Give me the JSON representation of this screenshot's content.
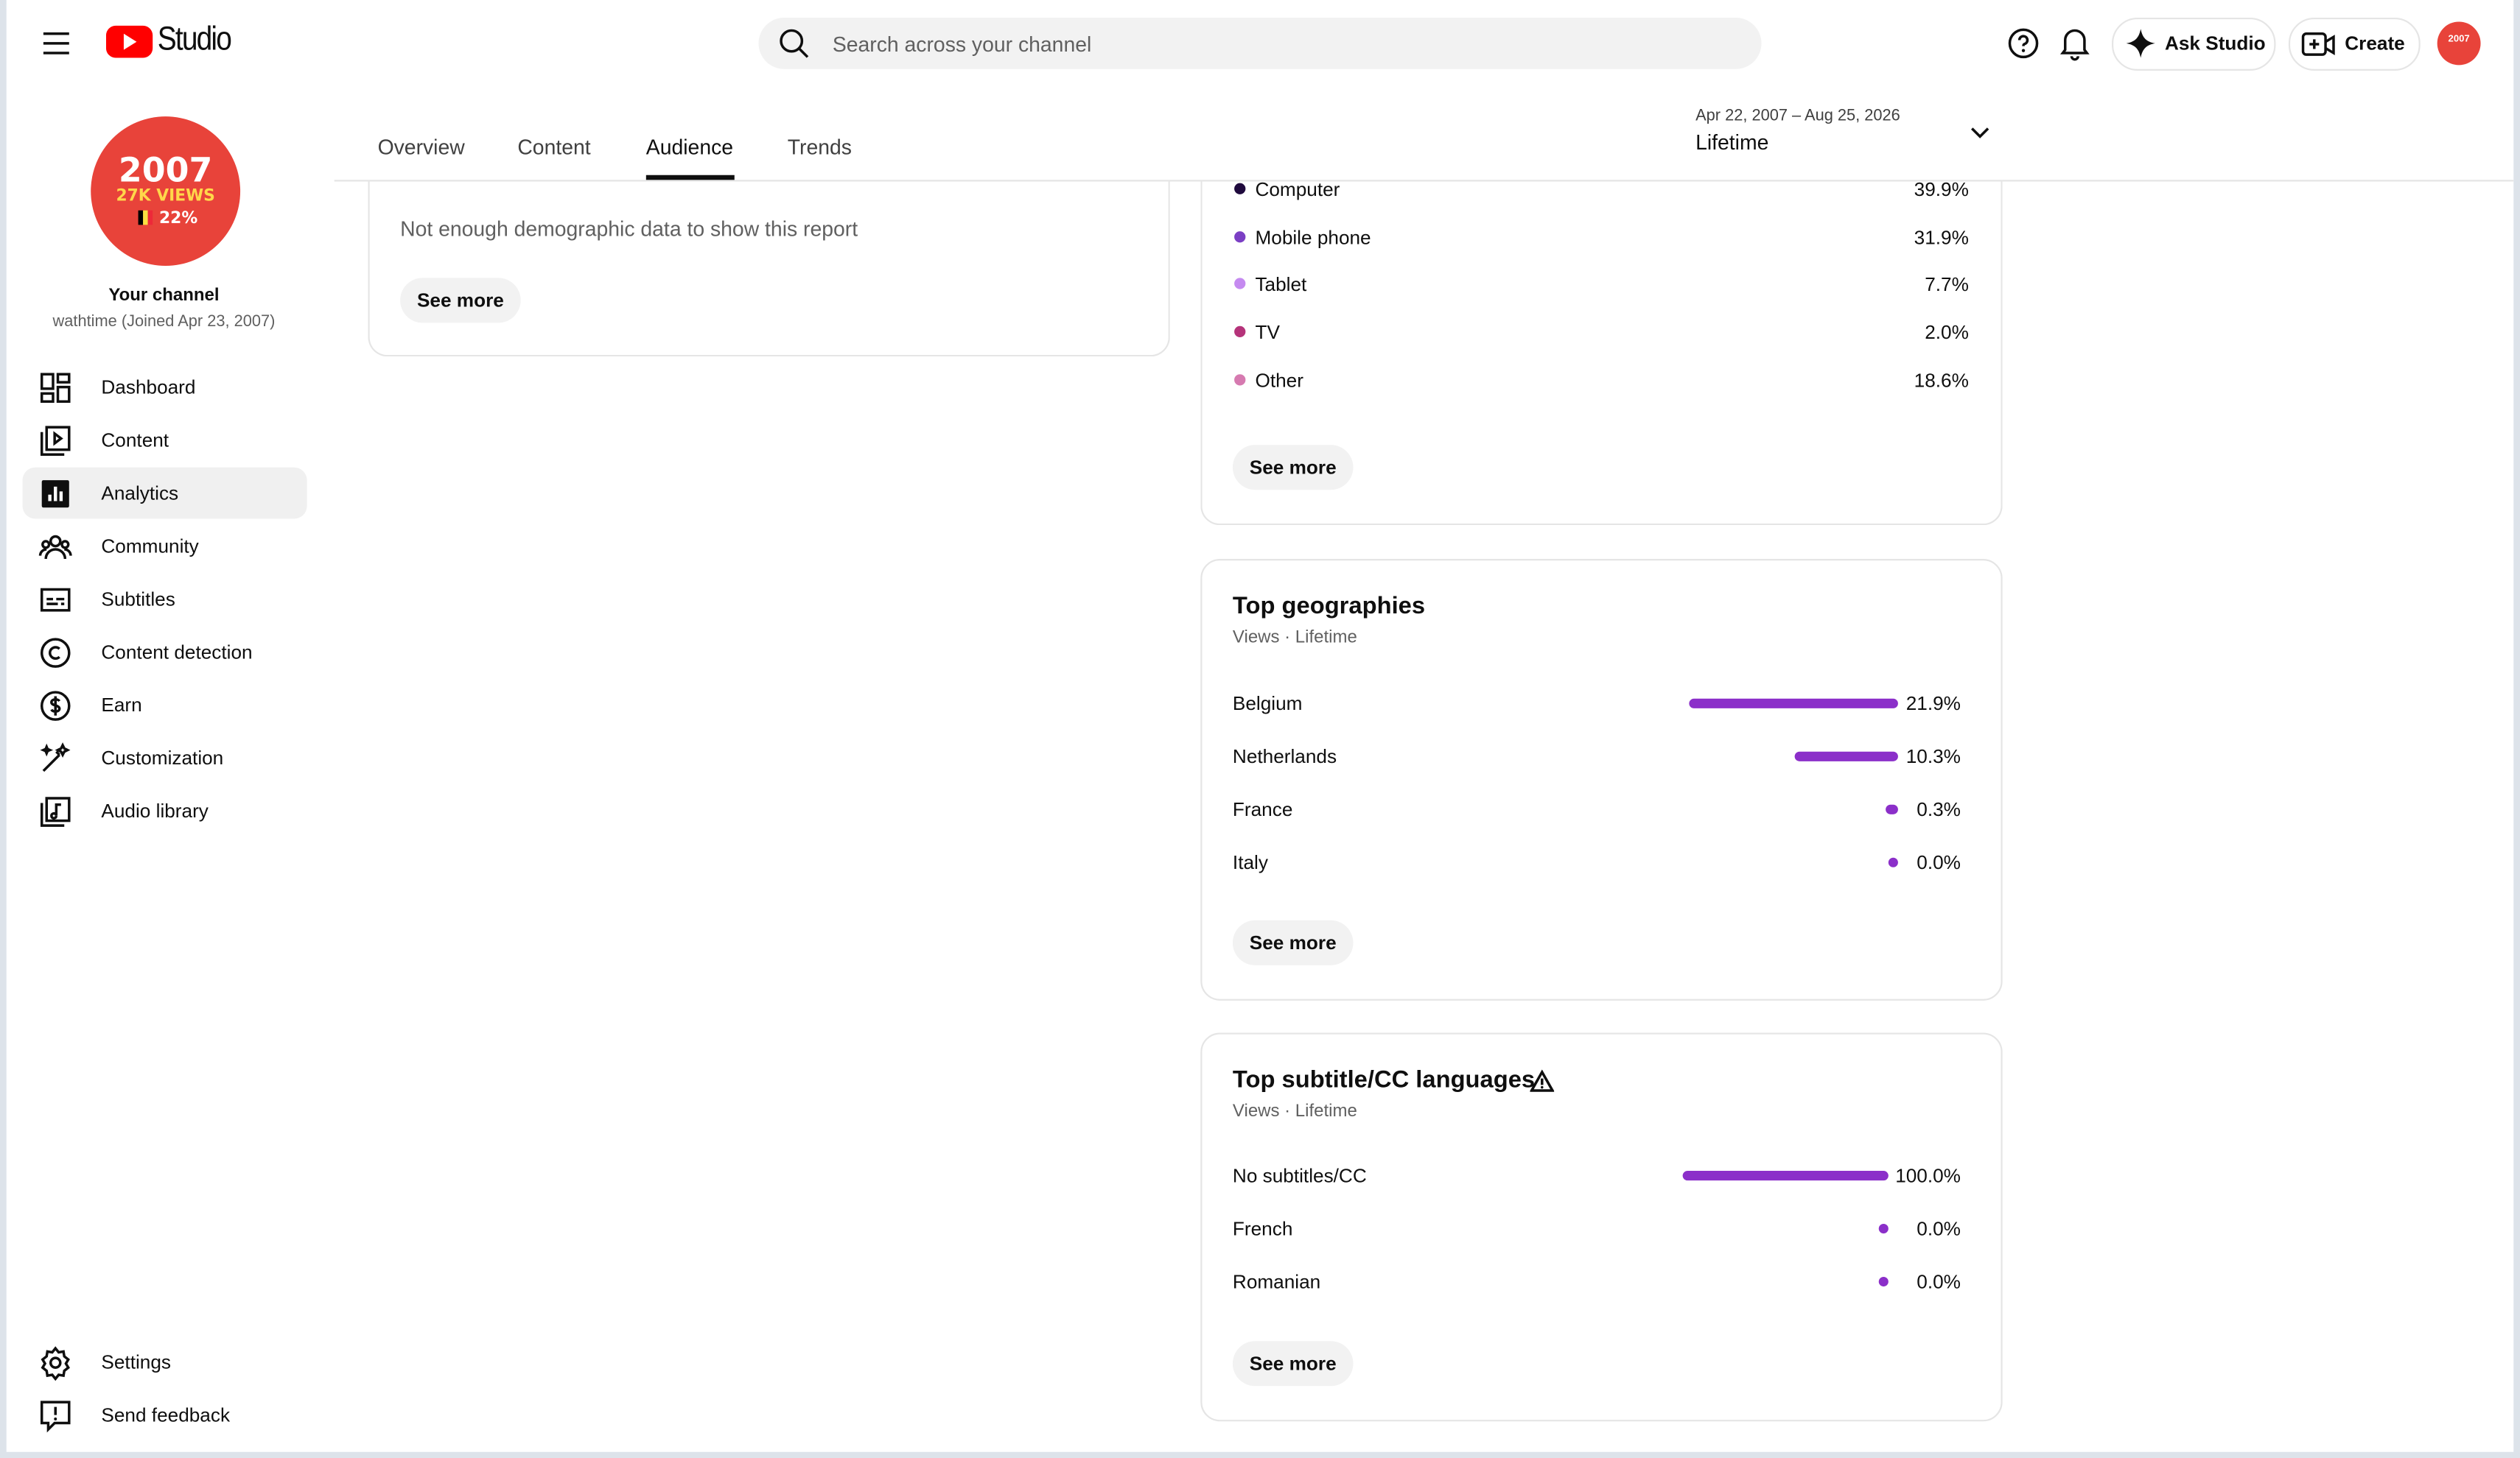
{
  "header": {
    "logo": "Studio",
    "search_placeholder": "Search across your channel",
    "ask_studio": "Ask Studio",
    "create": "Create"
  },
  "channel": {
    "avatar": {
      "year": "2007",
      "views": "27K VIEWS",
      "share": "22%"
    },
    "title": "Your channel",
    "handle": "wathtime (Joined Apr 23, 2007)"
  },
  "nav": [
    "Dashboard",
    "Content",
    "Analytics",
    "Community",
    "Subtitles",
    "Content detection",
    "Earn",
    "Customization",
    "Audio library"
  ],
  "nav_bottom": [
    "Settings",
    "Send feedback"
  ],
  "tabs": [
    "Overview",
    "Content",
    "Audience",
    "Trends"
  ],
  "date_range": {
    "dates": "Apr 22, 2007 – Aug 25, 2026",
    "period": "Lifetime"
  },
  "demographics": {
    "message": "Not enough demographic data to show this report",
    "button": "See more"
  },
  "device_type": {
    "items": [
      {
        "name": "Computer",
        "color": "#1f0a3d",
        "label": "39.9%"
      },
      {
        "name": "Mobile phone",
        "color": "#7b3fc4",
        "label": "31.9%"
      },
      {
        "name": "Tablet",
        "color": "#c58af0",
        "label": "7.7%"
      },
      {
        "name": "TV",
        "color": "#b5337a",
        "label": "2.0%"
      },
      {
        "name": "Other",
        "color": "#d67ab0",
        "label": "18.6%"
      }
    ],
    "button": "See more"
  },
  "geographies": {
    "title": "Top geographies",
    "subtitle": "Views · Lifetime",
    "bar_color": "#8b2fc9",
    "items": [
      {
        "name": "Belgium",
        "value": 21.9,
        "label": "21.9%"
      },
      {
        "name": "Netherlands",
        "value": 10.3,
        "label": "10.3%"
      },
      {
        "name": "France",
        "value": 0.3,
        "label": "0.3%"
      },
      {
        "name": "Italy",
        "value": 0.0,
        "label": "0.0%"
      }
    ],
    "button": "See more"
  },
  "subtitle_languages": {
    "title": "Top subtitle/CC languages",
    "subtitle": "Views · Lifetime",
    "bar_color": "#8b2fc9",
    "items": [
      {
        "name": "No subtitles/CC",
        "value": 100.0,
        "label": "100.0%"
      },
      {
        "name": "French",
        "value": 0.0,
        "label": "0.0%"
      },
      {
        "name": "Romanian",
        "value": 0.0,
        "label": "0.0%"
      }
    ],
    "button": "See more"
  }
}
